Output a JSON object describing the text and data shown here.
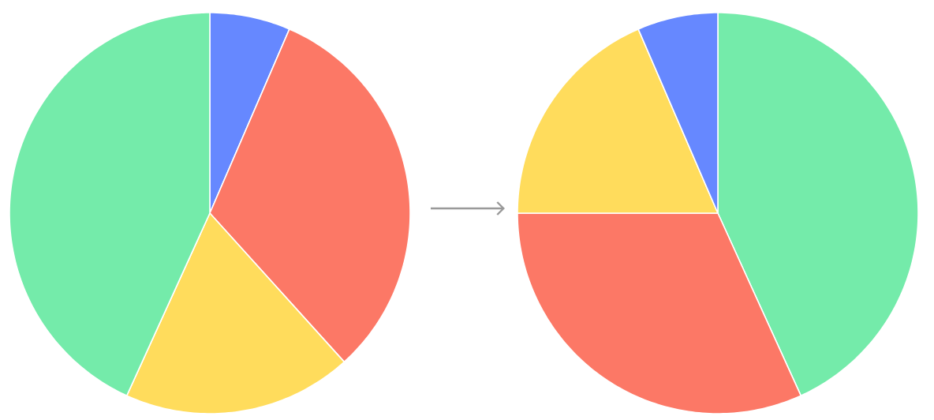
{
  "chart_data": [
    {
      "type": "pie",
      "categories": [
        null,
        null,
        null,
        null
      ],
      "values": [
        6.5,
        31.8,
        18.5,
        43.2
      ],
      "colors": [
        "#6688ff",
        "#fc7866",
        "#ffdc5c",
        "#74ebaa"
      ]
    },
    {
      "type": "pie",
      "categories": [
        null,
        null,
        null,
        null
      ],
      "values": [
        43.2,
        31.8,
        18.5,
        6.5
      ],
      "colors": [
        "#74ebaa",
        "#fc7866",
        "#ffdc5c",
        "#6688ff"
      ]
    }
  ]
}
